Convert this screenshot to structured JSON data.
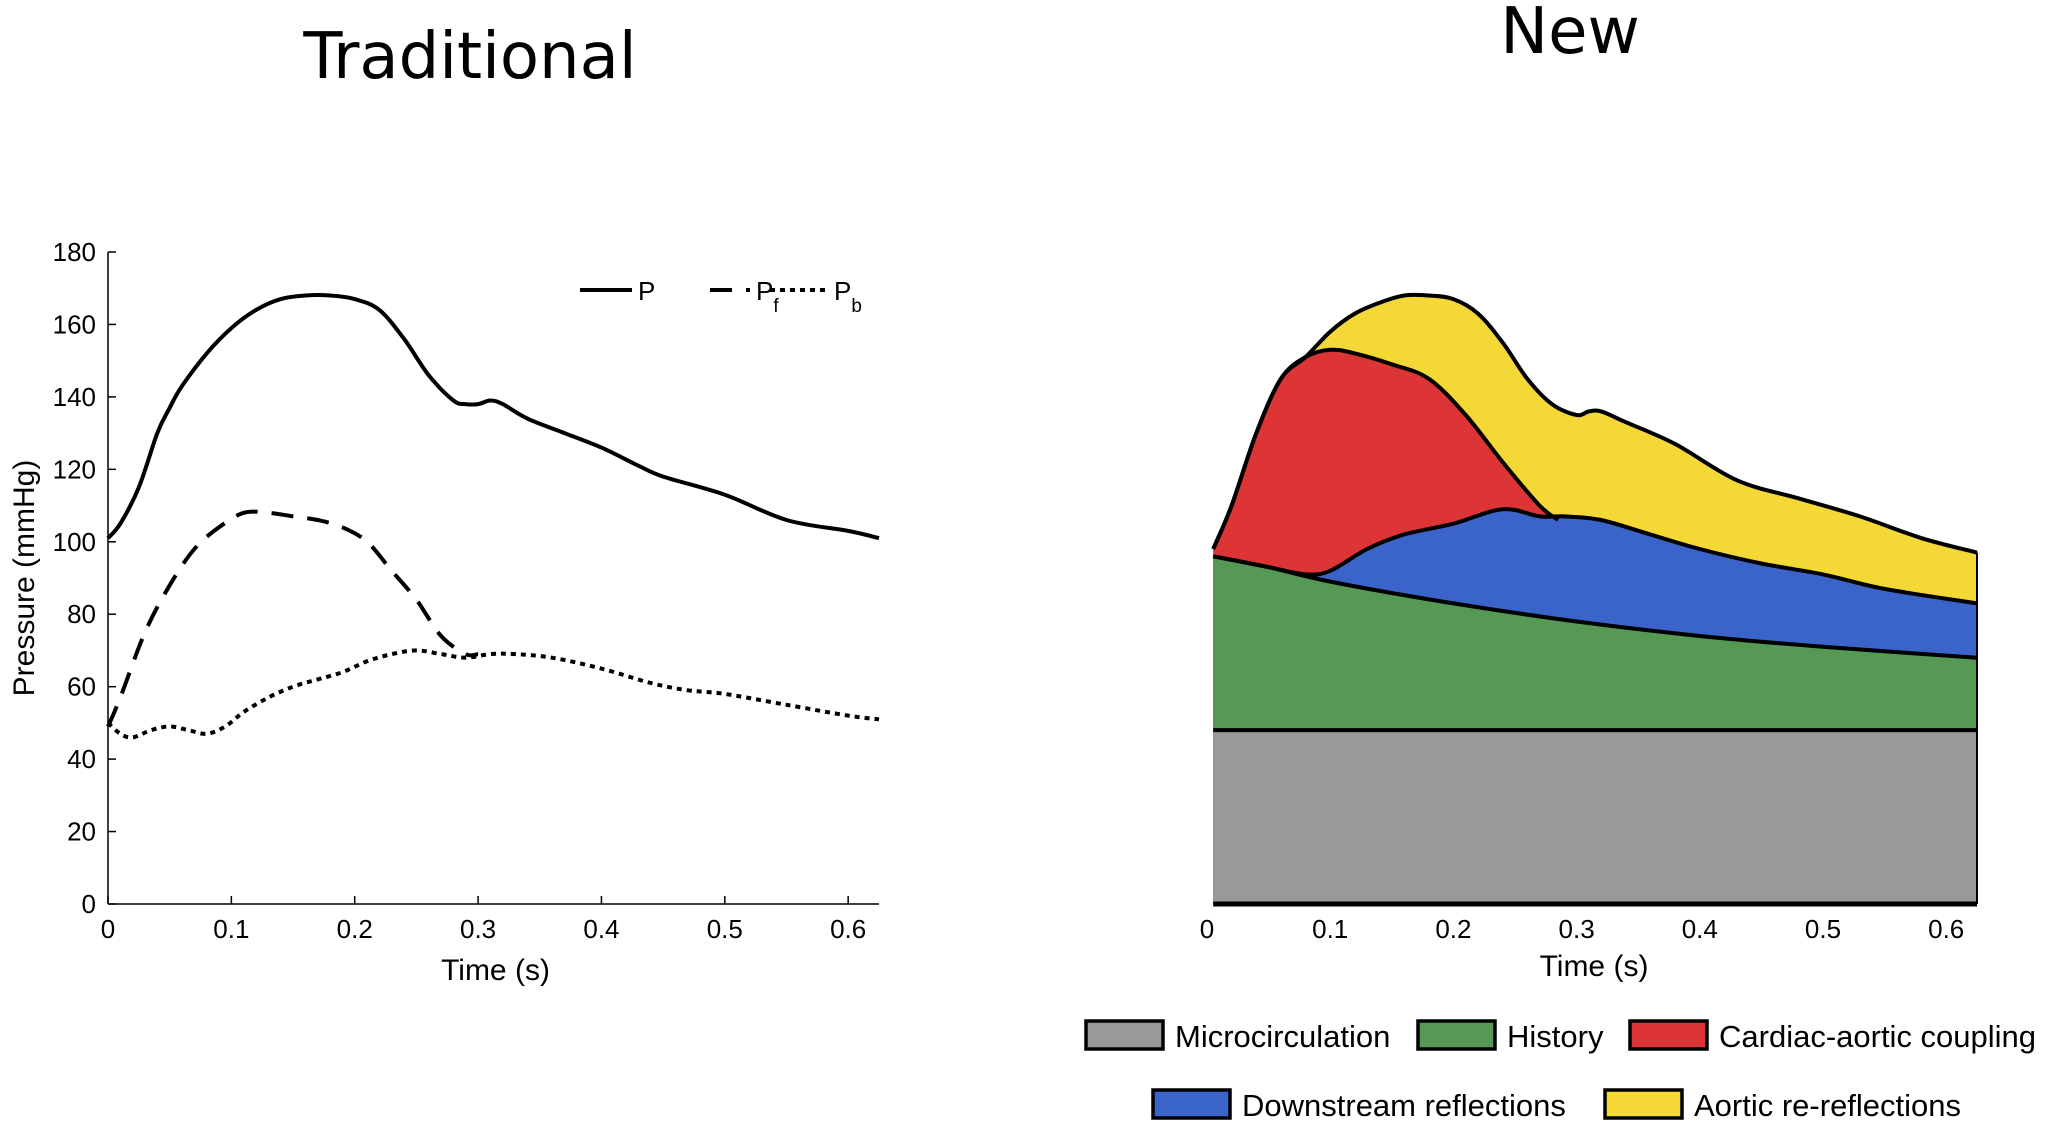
{
  "titles": {
    "left": "Traditional",
    "right": "New"
  },
  "chart_data": [
    {
      "type": "line",
      "title": "Traditional",
      "xlabel": "Time (s)",
      "ylabel": "Pressure (mmHg)",
      "xlim": [
        0,
        0.625
      ],
      "ylim": [
        0,
        180
      ],
      "xticks": [
        "0",
        "0.1",
        "0.2",
        "0.3",
        "0.4",
        "0.5",
        "0.6"
      ],
      "yticks": [
        "0",
        "20",
        "40",
        "60",
        "80",
        "100",
        "120",
        "140",
        "160",
        "180"
      ],
      "legend": {
        "placement": "top-right",
        "entries": [
          {
            "name": "P",
            "style": "solid"
          },
          {
            "name": "P",
            "sub": "f",
            "style": "dashed"
          },
          {
            "name": "P",
            "sub": "b",
            "style": "dotted"
          }
        ]
      },
      "series": [
        {
          "name": "P",
          "style": "solid",
          "x": [
            0,
            0.01,
            0.025,
            0.04,
            0.05,
            0.06,
            0.08,
            0.1,
            0.12,
            0.14,
            0.16,
            0.18,
            0.2,
            0.22,
            0.24,
            0.26,
            0.28,
            0.29,
            0.3,
            0.31,
            0.32,
            0.34,
            0.37,
            0.4,
            0.43,
            0.45,
            0.5,
            0.55,
            0.6,
            0.625
          ],
          "y": [
            101,
            105,
            115,
            130,
            137,
            143,
            152,
            159,
            164,
            167,
            168,
            168,
            167,
            164,
            156,
            146,
            139,
            138,
            138,
            139,
            138,
            134,
            130,
            126,
            121,
            118,
            113,
            106,
            103,
            101
          ]
        },
        {
          "name": "Pf",
          "style": "dashed",
          "x": [
            0,
            0.01,
            0.03,
            0.05,
            0.07,
            0.09,
            0.11,
            0.13,
            0.15,
            0.17,
            0.19,
            0.21,
            0.23,
            0.25,
            0.27,
            0.29,
            0.3
          ],
          "y": [
            49,
            57,
            75,
            88,
            98,
            104,
            108,
            108,
            107,
            106,
            104,
            100,
            92,
            84,
            74,
            69,
            69
          ]
        },
        {
          "name": "Pb",
          "style": "dotted",
          "x": [
            0,
            0.01,
            0.02,
            0.035,
            0.05,
            0.065,
            0.08,
            0.095,
            0.11,
            0.13,
            0.15,
            0.17,
            0.19,
            0.21,
            0.23,
            0.25,
            0.27,
            0.29,
            0.31,
            0.33,
            0.36,
            0.4,
            0.44,
            0.47,
            0.5,
            0.55,
            0.6,
            0.625
          ],
          "y": [
            50,
            47,
            46,
            48,
            49,
            48,
            47,
            49,
            53,
            57,
            60,
            62,
            64,
            67,
            69,
            70,
            69,
            68,
            69,
            69,
            68,
            65,
            61,
            59,
            58,
            55,
            52,
            51
          ]
        }
      ]
    },
    {
      "type": "area",
      "title": "New",
      "xlabel": "Time (s)",
      "xlim": [
        0,
        0.625
      ],
      "ylim": [
        0,
        180
      ],
      "xticks": [
        "0",
        "0.1",
        "0.2",
        "0.3",
        "0.4",
        "0.5",
        "0.6"
      ],
      "legend": {
        "placement": "bottom",
        "entries": [
          {
            "name": "Microcirculation",
            "color": "#999999"
          },
          {
            "name": "History",
            "color": "#559955"
          },
          {
            "name": "Cardiac-aortic coupling",
            "color": "#dd3535"
          },
          {
            "name": "Downstream reflections",
            "color": "#3a64c9"
          },
          {
            "name": "Aortic re-reflections",
            "color": "#f4d835"
          }
        ]
      },
      "microcirculation": 48,
      "history": {
        "x": [
          0.005,
          0.05,
          0.1,
          0.2,
          0.3,
          0.4,
          0.5,
          0.625
        ],
        "y": [
          96,
          93,
          89,
          83,
          78,
          74,
          71,
          68
        ]
      },
      "downstream_top": {
        "x": [
          0.005,
          0.05,
          0.08,
          0.1,
          0.13,
          0.16,
          0.2,
          0.24,
          0.27,
          0.29,
          0.32,
          0.36,
          0.4,
          0.45,
          0.5,
          0.55,
          0.625
        ],
        "y": [
          96,
          93,
          91,
          92,
          98,
          102,
          105,
          109,
          107,
          107,
          106,
          102,
          98,
          94,
          91,
          87,
          83
        ]
      },
      "coupling_top": {
        "x": [
          0.005,
          0.02,
          0.04,
          0.06,
          0.08,
          0.1,
          0.12,
          0.15,
          0.18,
          0.21,
          0.24,
          0.27,
          0.285
        ],
        "y": [
          98,
          110,
          130,
          145,
          151,
          153,
          152,
          149,
          145,
          135,
          122,
          110,
          106
        ]
      },
      "total": {
        "x": [
          0.005,
          0.02,
          0.04,
          0.06,
          0.08,
          0.1,
          0.12,
          0.14,
          0.16,
          0.18,
          0.2,
          0.22,
          0.24,
          0.26,
          0.28,
          0.3,
          0.31,
          0.32,
          0.34,
          0.38,
          0.43,
          0.48,
          0.53,
          0.58,
          0.625
        ],
        "y": [
          98,
          110,
          130,
          145,
          151,
          158,
          163,
          166,
          168,
          168,
          167,
          163,
          155,
          145,
          138,
          135,
          136,
          136,
          133,
          127,
          117,
          112,
          107,
          101,
          97
        ]
      }
    }
  ]
}
